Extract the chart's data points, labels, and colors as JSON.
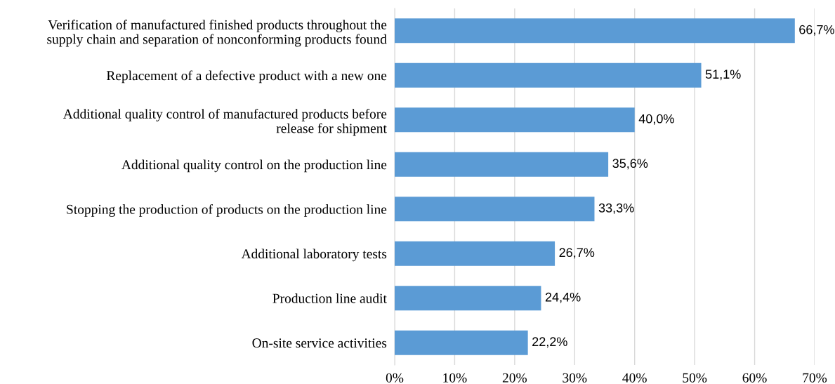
{
  "chart_data": {
    "type": "bar",
    "orientation": "horizontal",
    "categories": [
      "Verification of manufactured finished products throughout the\nsupply chain and separation of nonconforming products found",
      "Replacement of a defective product with a new one",
      "Additional quality control of manufactured products before\nrelease for shipment",
      "Additional quality control on the production line",
      "Stopping the production of products on the production line",
      "Additional laboratory tests",
      "Production line audit",
      "On-site service activities"
    ],
    "values": [
      66.7,
      51.1,
      40.0,
      35.6,
      33.3,
      26.7,
      24.4,
      22.2
    ],
    "value_labels": [
      "66,7%",
      "51,1%",
      "40,0%",
      "35,6%",
      "33,3%",
      "26,7%",
      "24,4%",
      "22,2%"
    ],
    "color": "#5b9bd5",
    "xlim": [
      0,
      70
    ],
    "xticks": [
      {
        "value": 0,
        "label": "0%"
      },
      {
        "value": 10,
        "label": "10%"
      },
      {
        "value": 20,
        "label": "20%"
      },
      {
        "value": 30,
        "label": "30%"
      },
      {
        "value": 40,
        "label": "40%"
      },
      {
        "value": 50,
        "label": "50%"
      },
      {
        "value": 60,
        "label": "60%"
      },
      {
        "value": 70,
        "label": "70%"
      }
    ],
    "grid": "x"
  }
}
